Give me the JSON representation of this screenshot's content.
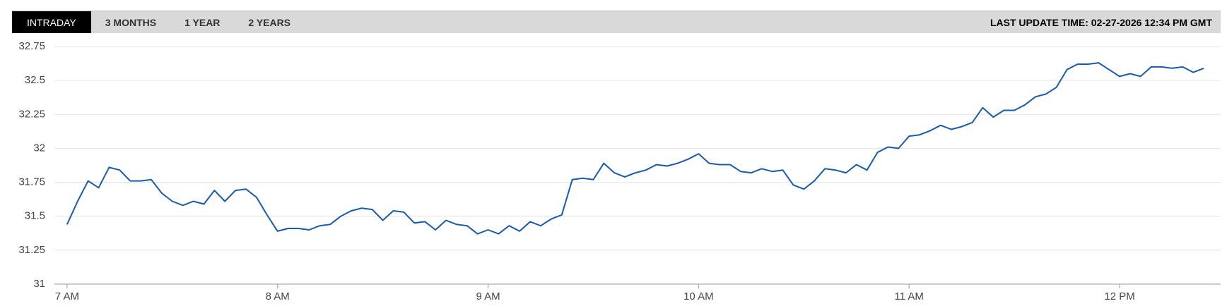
{
  "tabs": [
    "INTRADAY",
    "3 MONTHS",
    "1 YEAR",
    "2 YEARS"
  ],
  "last_update": "LAST UPDATE TIME: 02-27-2026 12:34 PM GMT",
  "chart_data": {
    "type": "line",
    "x": [
      7,
      7.05,
      7.1,
      7.15,
      7.2,
      7.25,
      7.3,
      7.35,
      7.4,
      7.45,
      7.5,
      7.55,
      7.6,
      7.65,
      7.7,
      7.75,
      7.8,
      7.85,
      7.9,
      7.95,
      8,
      8.05,
      8.1,
      8.15,
      8.2,
      8.25,
      8.3,
      8.35,
      8.4,
      8.45,
      8.5,
      8.55,
      8.6,
      8.65,
      8.7,
      8.75,
      8.8,
      8.85,
      8.9,
      8.95,
      9,
      9.05,
      9.1,
      9.15,
      9.2,
      9.25,
      9.3,
      9.35,
      9.4,
      9.45,
      9.5,
      9.55,
      9.6,
      9.65,
      9.7,
      9.75,
      9.8,
      9.85,
      9.9,
      9.95,
      10,
      10.05,
      10.1,
      10.15,
      10.2,
      10.25,
      10.3,
      10.35,
      10.4,
      10.45,
      10.5,
      10.55,
      10.6,
      10.65,
      10.7,
      10.75,
      10.8,
      10.85,
      10.9,
      10.95,
      11,
      11.05,
      11.1,
      11.15,
      11.2,
      11.25,
      11.3,
      11.35,
      11.4,
      11.45,
      11.5,
      11.55,
      11.6,
      11.65,
      11.7,
      11.75,
      11.8,
      11.85,
      11.9,
      11.95,
      12,
      12.05,
      12.1,
      12.15,
      12.2,
      12.25,
      12.3,
      12.35,
      12.4
    ],
    "series": [
      {
        "color": "#1a5ba6",
        "values": [
          31.44,
          31.61,
          31.76,
          31.71,
          31.86,
          31.84,
          31.76,
          31.76,
          31.77,
          31.67,
          31.61,
          31.58,
          31.61,
          31.59,
          31.69,
          31.61,
          31.69,
          31.7,
          31.64,
          31.51,
          31.39,
          31.41,
          31.41,
          31.4,
          31.43,
          31.44,
          31.5,
          31.54,
          31.56,
          31.55,
          31.47,
          31.54,
          31.53,
          31.45,
          31.46,
          31.4,
          31.47,
          31.44,
          31.43,
          31.37,
          31.4,
          31.37,
          31.43,
          31.39,
          31.46,
          31.43,
          31.48,
          31.51,
          31.77,
          31.78,
          31.77,
          31.89,
          31.82,
          31.79,
          31.82,
          31.84,
          31.88,
          31.87,
          31.89,
          31.92,
          31.96,
          31.89,
          31.88,
          31.88,
          31.83,
          31.82,
          31.85,
          31.83,
          31.84,
          31.73,
          31.7,
          31.76,
          31.85,
          31.84,
          31.82,
          31.88,
          31.84,
          31.97,
          32.01,
          32,
          32.09,
          32.1,
          32.13,
          32.17,
          32.14,
          32.16,
          32.19,
          32.3,
          32.23,
          32.28,
          32.28,
          32.32,
          32.38,
          32.4,
          32.45,
          32.58,
          32.62,
          32.62,
          32.63,
          32.58,
          32.53,
          32.55,
          32.53,
          32.6,
          32.6,
          32.59,
          32.6,
          32.56,
          32.59
        ]
      }
    ],
    "xlim": [
      6.94,
      12.48
    ],
    "xticks": [
      {
        "value": 7,
        "label": "7 AM"
      },
      {
        "value": 8,
        "label": "8 AM"
      },
      {
        "value": 9,
        "label": "9 AM"
      },
      {
        "value": 10,
        "label": "10 AM"
      },
      {
        "value": 11,
        "label": "11 AM"
      },
      {
        "value": 12,
        "label": "12 PM"
      }
    ],
    "ylim": [
      31,
      32.75
    ],
    "yticks": [
      31,
      31.25,
      31.5,
      31.75,
      32,
      32.25,
      32.5,
      32.75
    ],
    "grid": true
  }
}
